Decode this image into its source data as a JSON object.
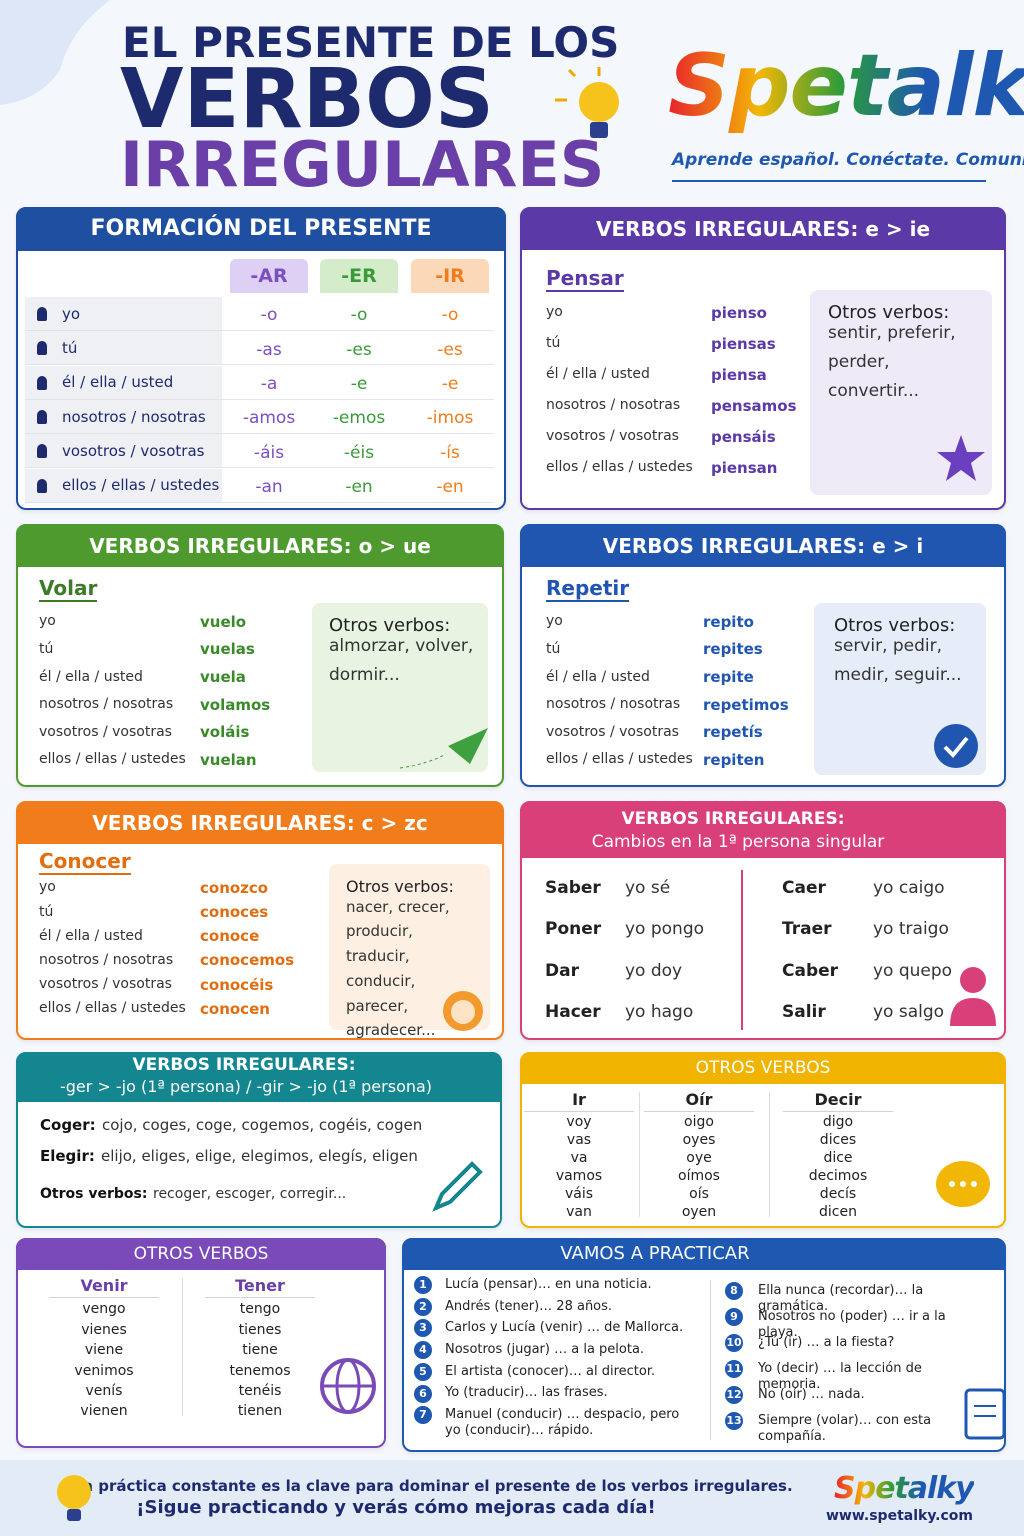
{
  "header": {
    "title_top": "EL PRESENTE DE LOS",
    "title_main": "VERBOS",
    "title_sub": "IRREGULARES",
    "logo": "Spetalky",
    "tagline": "Aprende español. Conéctate. Comunica."
  },
  "formation": {
    "title": "FORMACIÓN DEL PRESENTE",
    "columns": [
      "-AR",
      "-ER",
      "-IR"
    ],
    "rows": [
      [
        "yo",
        "-o",
        "-o",
        "-o"
      ],
      [
        "tú",
        "-as",
        "-es",
        "-es"
      ],
      [
        "él / ella / usted",
        "-a",
        "-e",
        "-e"
      ],
      [
        "nosotros / nosotras",
        "-amos",
        "-emos",
        "-imos"
      ],
      [
        "vosotros / vosotras",
        "-áis",
        "-éis",
        "-ís"
      ],
      [
        "ellos / ellas / ustedes",
        "-an",
        "-en",
        "-en"
      ]
    ]
  },
  "e_ie": {
    "title": "VERBOS IRREGULARES: e > ie",
    "verb": "Pensar",
    "rows": [
      [
        "yo",
        "pienso"
      ],
      [
        "tú",
        "piensas"
      ],
      [
        "él / ella / usted",
        "piensa"
      ],
      [
        "nosotros / nosotras",
        "pensamos"
      ],
      [
        "vosotros / vosotras",
        "pensáis"
      ],
      [
        "ellos / ellas / ustedes",
        "piensan"
      ]
    ],
    "others_label": "Otros verbos:",
    "others": "sentir, preferir, perder, convertir..."
  },
  "o_ue": {
    "title": "VERBOS IRREGULARES: o > ue",
    "verb": "Volar",
    "rows": [
      [
        "yo",
        "vuelo"
      ],
      [
        "tú",
        "vuelas"
      ],
      [
        "él / ella / usted",
        "vuela"
      ],
      [
        "nosotros / nosotras",
        "volamos"
      ],
      [
        "vosotros / vosotras",
        "voláis"
      ],
      [
        "ellos / ellas / ustedes",
        "vuelan"
      ]
    ],
    "others_label": "Otros verbos:",
    "others": "almorzar, volver, dormir..."
  },
  "e_i": {
    "title": "VERBOS IRREGULARES: e > i",
    "verb": "Repetir",
    "rows": [
      [
        "yo",
        "repito"
      ],
      [
        "tú",
        "repites"
      ],
      [
        "él / ella / usted",
        "repite"
      ],
      [
        "nosotros / nosotras",
        "repetimos"
      ],
      [
        "vosotros / vosotras",
        "repetís"
      ],
      [
        "ellos / ellas / ustedes",
        "repiten"
      ]
    ],
    "others_label": "Otros verbos:",
    "others": "servir, pedir, medir, seguir..."
  },
  "c_zc": {
    "title": "VERBOS IRREGULARES: c > zc",
    "verb": "Conocer",
    "rows": [
      [
        "yo",
        "conozco"
      ],
      [
        "tú",
        "conoces"
      ],
      [
        "él / ella / usted",
        "conoce"
      ],
      [
        "nosotros / nosotras",
        "conocemos"
      ],
      [
        "vosotros / vosotras",
        "conocéis"
      ],
      [
        "ellos / ellas / ustedes",
        "conocen"
      ]
    ],
    "others_label": "Otros verbos:",
    "others": "nacer, crecer, producir, traducir, conducir, parecer, agradecer..."
  },
  "first_person": {
    "title": "VERBOS IRREGULARES:",
    "subtitle": "Cambios en la 1ª persona singular",
    "items": [
      [
        "Saber",
        "yo sé"
      ],
      [
        "Poner",
        "yo pongo"
      ],
      [
        "Dar",
        "yo doy"
      ],
      [
        "Hacer",
        "yo hago"
      ],
      [
        "Caer",
        "yo caigo"
      ],
      [
        "Traer",
        "yo traigo"
      ],
      [
        "Caber",
        "yo quepo"
      ],
      [
        "Salir",
        "yo salgo"
      ]
    ]
  },
  "ger_gir": {
    "title": "VERBOS IRREGULARES:",
    "subtitle": "-ger > -jo (1ª persona) / -gir > -jo (1ª persona)",
    "lines": [
      {
        "verb": "Coger:",
        "forms": "cojo, coges, coge, cogemos, cogéis, cogen"
      },
      {
        "verb": "Elegir:",
        "forms": "elijo, eliges, elige, elegimos, elegís, eligen"
      },
      {
        "verb": "Otros verbos:",
        "forms": "recoger, escoger, corregir..."
      }
    ]
  },
  "otros1": {
    "title": "OTROS VERBOS",
    "verbs": [
      {
        "name": "Ir",
        "forms": [
          "voy",
          "vas",
          "va",
          "vamos",
          "váis",
          "van"
        ]
      },
      {
        "name": "Oír",
        "forms": [
          "oigo",
          "oyes",
          "oye",
          "oímos",
          "oís",
          "oyen"
        ]
      },
      {
        "name": "Decir",
        "forms": [
          "digo",
          "dices",
          "dice",
          "decimos",
          "decís",
          "dicen"
        ]
      }
    ]
  },
  "otros2": {
    "title": "OTROS VERBOS",
    "verbs": [
      {
        "name": "Venir",
        "forms": [
          "vengo",
          "vienes",
          "viene",
          "venimos",
          "venís",
          "vienen"
        ]
      },
      {
        "name": "Tener",
        "forms": [
          "tengo",
          "tienes",
          "tiene",
          "tenemos",
          "tenéis",
          "tienen"
        ]
      }
    ]
  },
  "practice": {
    "title": "VAMOS A PRACTICAR",
    "items": [
      {
        "number": 1,
        "text": "Lucía (pensar)… en una noticia."
      },
      {
        "number": 2,
        "text": "Andrés (tener)… 28 años."
      },
      {
        "number": 3,
        "text": "Carlos y Lucía (venir) … de Mallorca."
      },
      {
        "number": 4,
        "text": "Nosotros (jugar) … a la pelota."
      },
      {
        "number": 5,
        "text": "El artista (conocer)… al director."
      },
      {
        "number": 6,
        "text": "Yo (traducir)… las frases."
      },
      {
        "number": 7,
        "text": "Manuel (conducir) … despacio, pero yo (conducir)… rápido."
      },
      {
        "number": 8,
        "text": "Ella nunca (recordar)… la gramática."
      },
      {
        "number": 9,
        "text": "Nosotros no (poder) … ir a la playa."
      },
      {
        "number": 10,
        "text": "¿Tú (ir) … a la fiesta?"
      },
      {
        "number": 11,
        "text": "Yo (decir) … la lección de memoria."
      },
      {
        "number": 12,
        "text": "No (oír) … nada."
      },
      {
        "number": 13,
        "text": "Siempre (volar)… con esta compañía."
      }
    ]
  },
  "footer": {
    "line1": "La práctica constante es la clave para dominar el presente de los verbos irregulares.",
    "line2": "¡Sigue practicando y verás cómo mejoras cada día!",
    "logo": "Spetalky",
    "url": "www.spetalky.com"
  }
}
